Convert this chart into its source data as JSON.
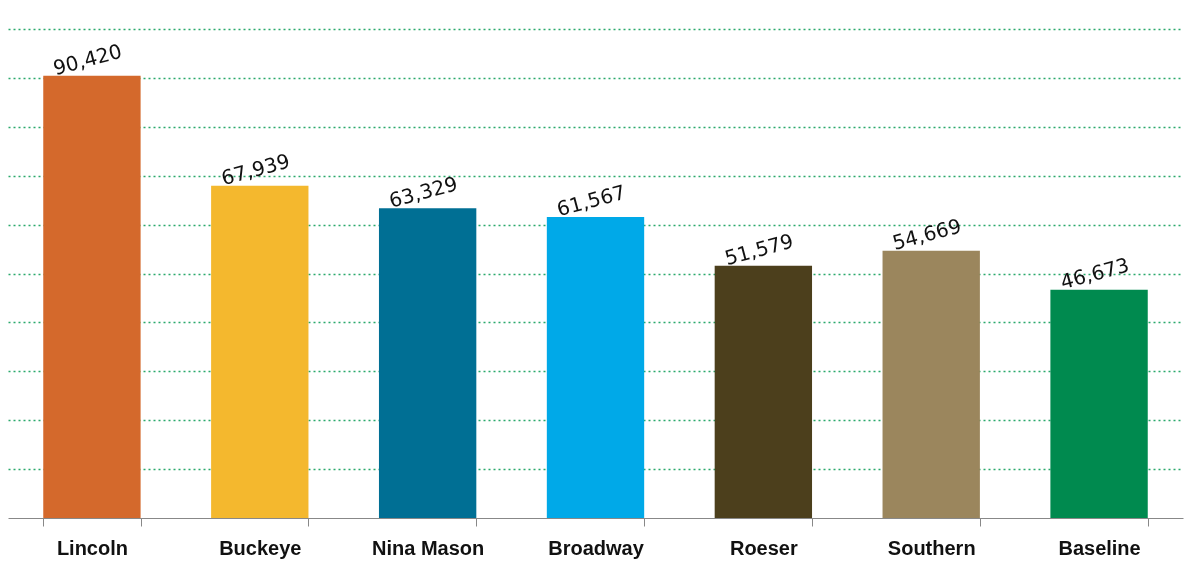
{
  "chart_data": {
    "type": "bar",
    "categories": [
      "Lincoln",
      "Buckeye",
      "Nina Mason",
      "Broadway",
      "Roeser",
      "Southern",
      "Baseline"
    ],
    "values": [
      90420,
      67939,
      63329,
      61567,
      51579,
      54669,
      46673
    ],
    "value_labels": [
      "90,420",
      "67,939",
      "63,329",
      "61,567",
      "51,579",
      "54,669",
      "46,673"
    ],
    "colors": [
      "#d4692c",
      "#f4b82e",
      "#006f94",
      "#00a9e8",
      "#4c3f1c",
      "#9b865d",
      "#008a4f"
    ],
    "ylim": [
      0,
      100000
    ],
    "yticks": [
      {
        "value": 10000,
        "label": null
      },
      {
        "value": 20000,
        "label": null
      },
      {
        "value": 30000,
        "label": null
      },
      {
        "value": 40000,
        "label": null
      },
      {
        "value": 50000,
        "label": null
      },
      {
        "value": 60000,
        "label": null
      },
      {
        "value": 70000,
        "label": null
      },
      {
        "value": 80000,
        "label": null
      },
      {
        "value": 90000,
        "label": null
      },
      {
        "value": 100000,
        "label": null
      }
    ],
    "grid": "y",
    "tick_labels": "x"
  }
}
